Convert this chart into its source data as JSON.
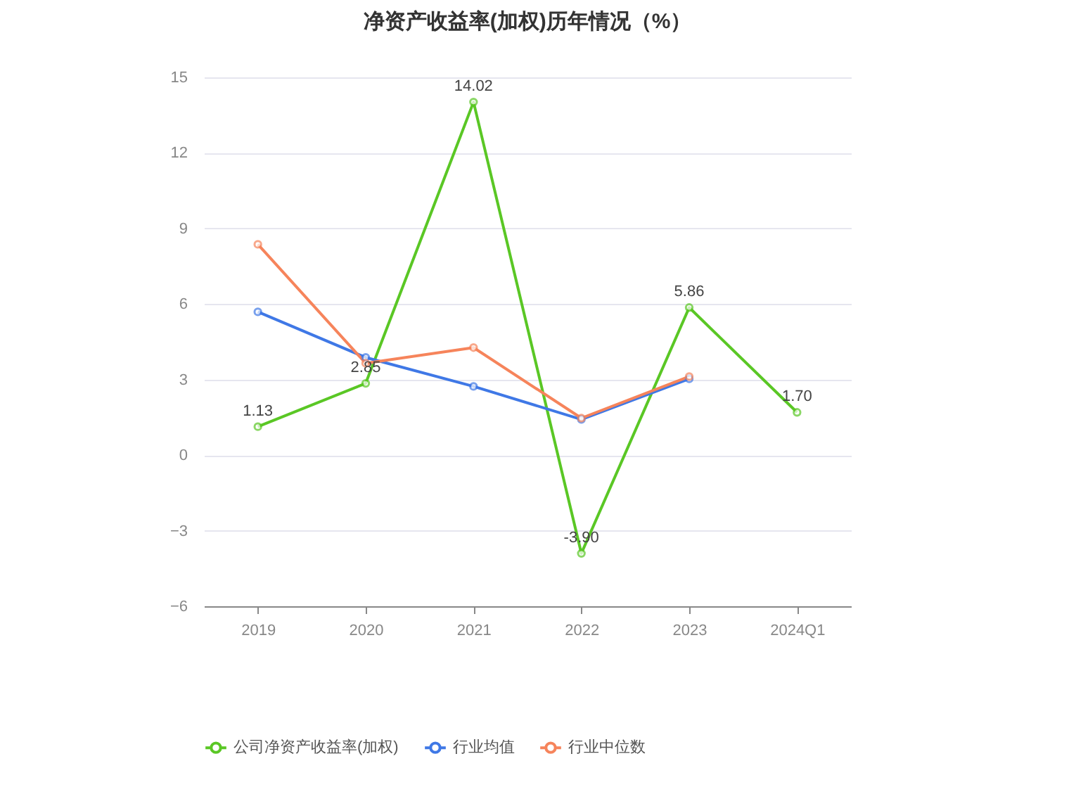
{
  "chart_data": {
    "type": "line",
    "title": "净资产收益率(加权)历年情况（%）",
    "categories": [
      "2019",
      "2020",
      "2021",
      "2022",
      "2023",
      "2024Q1"
    ],
    "series": [
      {
        "name": "公司净资产收益率(加权)",
        "color": "#5ac725",
        "values": [
          1.13,
          2.85,
          14.02,
          -3.9,
          5.86,
          1.7
        ],
        "value_labels": [
          "1.13",
          "2.85",
          "14.02",
          "-3.90",
          "5.86",
          "1.70"
        ]
      },
      {
        "name": "行业均值",
        "color": "#3f78e6",
        "values": [
          5.69,
          3.88,
          2.73,
          1.42,
          3.03,
          null
        ]
      },
      {
        "name": "行业中位数",
        "color": "#f6845b",
        "values": [
          8.37,
          3.65,
          4.27,
          1.47,
          3.12,
          null
        ]
      }
    ],
    "ylim": [
      -6,
      15
    ],
    "yticks": [
      -6,
      -3,
      0,
      3,
      6,
      9,
      12,
      15
    ],
    "grid": "y",
    "legend": "bottom",
    "marker": "circle",
    "line_style": "solid"
  }
}
